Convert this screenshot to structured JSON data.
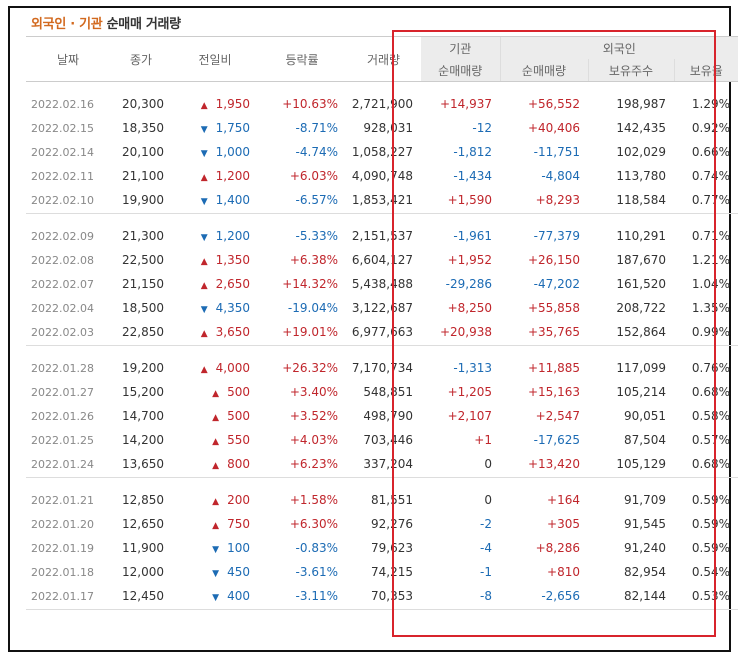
{
  "title": {
    "part1": "외국인 · 기관",
    "part2": "순매매 거래량"
  },
  "headers": {
    "date": "날짜",
    "close": "종가",
    "change": "전일비",
    "rate": "등락률",
    "volume": "거래량",
    "inst_group": "기관",
    "foreign_group": "외국인",
    "inst_net": "순매매량",
    "foreign_net": "순매매량",
    "foreign_hold": "보유주수",
    "foreign_ratio": "보유율"
  },
  "arrows": {
    "up": "▲",
    "down": "▼"
  },
  "groups": [
    {
      "rows": [
        {
          "date": "2022.02.16",
          "close": "20,300",
          "dir": "up",
          "chg": "1,950",
          "rate": "+10.63%",
          "vol": "2,721,900",
          "inst": "+14,937",
          "frgn": "+56,552",
          "hold": "198,987",
          "ratio": "1.29%"
        },
        {
          "date": "2022.02.15",
          "close": "18,350",
          "dir": "down",
          "chg": "1,750",
          "rate": "-8.71%",
          "vol": "928,031",
          "inst": "-12",
          "frgn": "+40,406",
          "hold": "142,435",
          "ratio": "0.92%"
        },
        {
          "date": "2022.02.14",
          "close": "20,100",
          "dir": "down",
          "chg": "1,000",
          "rate": "-4.74%",
          "vol": "1,058,227",
          "inst": "-1,812",
          "frgn": "-11,751",
          "hold": "102,029",
          "ratio": "0.66%"
        },
        {
          "date": "2022.02.11",
          "close": "21,100",
          "dir": "up",
          "chg": "1,200",
          "rate": "+6.03%",
          "vol": "4,090,748",
          "inst": "-1,434",
          "frgn": "-4,804",
          "hold": "113,780",
          "ratio": "0.74%"
        },
        {
          "date": "2022.02.10",
          "close": "19,900",
          "dir": "down",
          "chg": "1,400",
          "rate": "-6.57%",
          "vol": "1,853,421",
          "inst": "+1,590",
          "frgn": "+8,293",
          "hold": "118,584",
          "ratio": "0.77%"
        }
      ]
    },
    {
      "rows": [
        {
          "date": "2022.02.09",
          "close": "21,300",
          "dir": "down",
          "chg": "1,200",
          "rate": "-5.33%",
          "vol": "2,151,537",
          "inst": "-1,961",
          "frgn": "-77,379",
          "hold": "110,291",
          "ratio": "0.71%"
        },
        {
          "date": "2022.02.08",
          "close": "22,500",
          "dir": "up",
          "chg": "1,350",
          "rate": "+6.38%",
          "vol": "6,604,127",
          "inst": "+1,952",
          "frgn": "+26,150",
          "hold": "187,670",
          "ratio": "1.21%"
        },
        {
          "date": "2022.02.07",
          "close": "21,150",
          "dir": "up",
          "chg": "2,650",
          "rate": "+14.32%",
          "vol": "5,438,488",
          "inst": "-29,286",
          "frgn": "-47,202",
          "hold": "161,520",
          "ratio": "1.04%"
        },
        {
          "date": "2022.02.04",
          "close": "18,500",
          "dir": "down",
          "chg": "4,350",
          "rate": "-19.04%",
          "vol": "3,122,687",
          "inst": "+8,250",
          "frgn": "+55,858",
          "hold": "208,722",
          "ratio": "1.35%"
        },
        {
          "date": "2022.02.03",
          "close": "22,850",
          "dir": "up",
          "chg": "3,650",
          "rate": "+19.01%",
          "vol": "6,977,663",
          "inst": "+20,938",
          "frgn": "+35,765",
          "hold": "152,864",
          "ratio": "0.99%"
        }
      ]
    },
    {
      "rows": [
        {
          "date": "2022.01.28",
          "close": "19,200",
          "dir": "up",
          "chg": "4,000",
          "rate": "+26.32%",
          "vol": "7,170,734",
          "inst": "-1,313",
          "frgn": "+11,885",
          "hold": "117,099",
          "ratio": "0.76%"
        },
        {
          "date": "2022.01.27",
          "close": "15,200",
          "dir": "up",
          "chg": "500",
          "rate": "+3.40%",
          "vol": "548,851",
          "inst": "+1,205",
          "frgn": "+15,163",
          "hold": "105,214",
          "ratio": "0.68%"
        },
        {
          "date": "2022.01.26",
          "close": "14,700",
          "dir": "up",
          "chg": "500",
          "rate": "+3.52%",
          "vol": "498,790",
          "inst": "+2,107",
          "frgn": "+2,547",
          "hold": "90,051",
          "ratio": "0.58%"
        },
        {
          "date": "2022.01.25",
          "close": "14,200",
          "dir": "up",
          "chg": "550",
          "rate": "+4.03%",
          "vol": "703,446",
          "inst": "+1",
          "frgn": "-17,625",
          "hold": "87,504",
          "ratio": "0.57%"
        },
        {
          "date": "2022.01.24",
          "close": "13,650",
          "dir": "up",
          "chg": "800",
          "rate": "+6.23%",
          "vol": "337,204",
          "inst": "0",
          "frgn": "+13,420",
          "hold": "105,129",
          "ratio": "0.68%"
        }
      ]
    },
    {
      "rows": [
        {
          "date": "2022.01.21",
          "close": "12,850",
          "dir": "up",
          "chg": "200",
          "rate": "+1.58%",
          "vol": "81,551",
          "inst": "0",
          "frgn": "+164",
          "hold": "91,709",
          "ratio": "0.59%"
        },
        {
          "date": "2022.01.20",
          "close": "12,650",
          "dir": "up",
          "chg": "750",
          "rate": "+6.30%",
          "vol": "92,276",
          "inst": "-2",
          "frgn": "+305",
          "hold": "91,545",
          "ratio": "0.59%"
        },
        {
          "date": "2022.01.19",
          "close": "11,900",
          "dir": "down",
          "chg": "100",
          "rate": "-0.83%",
          "vol": "79,623",
          "inst": "-4",
          "frgn": "+8,286",
          "hold": "91,240",
          "ratio": "0.59%"
        },
        {
          "date": "2022.01.18",
          "close": "12,000",
          "dir": "down",
          "chg": "450",
          "rate": "-3.61%",
          "vol": "74,215",
          "inst": "-1",
          "frgn": "+810",
          "hold": "82,954",
          "ratio": "0.54%"
        },
        {
          "date": "2022.01.17",
          "close": "12,450",
          "dir": "down",
          "chg": "400",
          "rate": "-3.11%",
          "vol": "70,353",
          "inst": "-8",
          "frgn": "-2,656",
          "hold": "82,144",
          "ratio": "0.53%"
        }
      ]
    }
  ],
  "colors": {
    "up": "#c0262c",
    "down": "#1c6bb4",
    "title_accent": "#d2691e",
    "highlight_box": "#d8242c"
  }
}
